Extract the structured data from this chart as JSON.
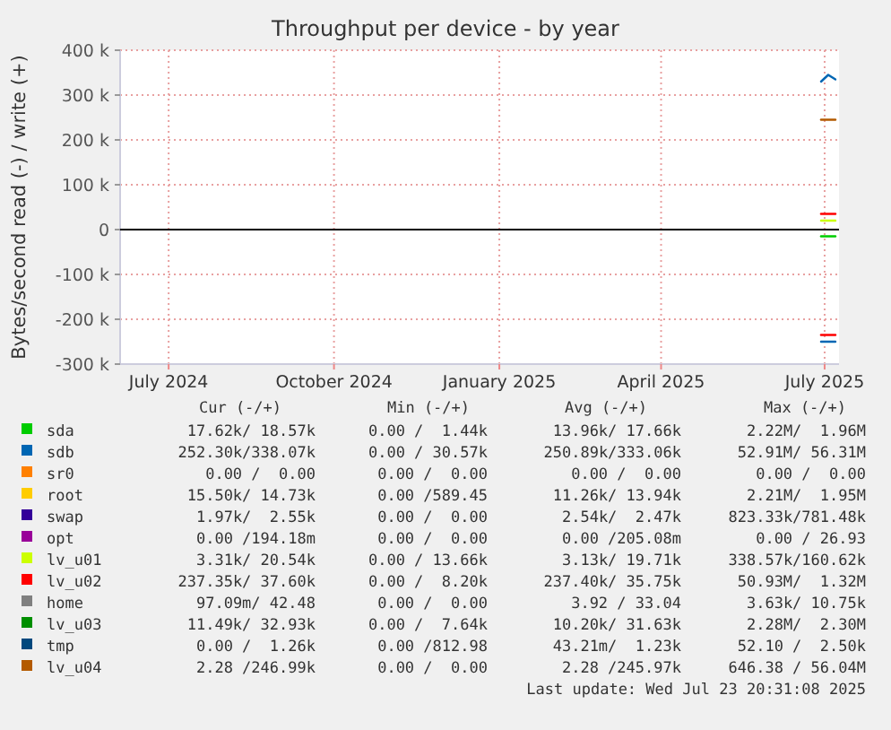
{
  "chart_data": {
    "type": "line",
    "title": "Throughput per device - by year",
    "ylabel": "Bytes/second read (-) / write (+)",
    "x": [
      "2025-06-29",
      "2025-07-03",
      "2025-07-07"
    ],
    "xlim": [
      "2024-06-04",
      "2025-07-09"
    ],
    "xticks": [
      {
        "value": "2024-07-01",
        "label": "July 2024"
      },
      {
        "value": "2024-10-01",
        "label": "October 2024"
      },
      {
        "value": "2025-01-01",
        "label": "January 2025"
      },
      {
        "value": "2025-04-01",
        "label": "April 2025"
      },
      {
        "value": "2025-07-01",
        "label": "July 2025"
      }
    ],
    "ylim": [
      -300000,
      400000
    ],
    "yticks": [
      {
        "value": -300000,
        "label": "-300 k"
      },
      {
        "value": -200000,
        "label": "-200 k"
      },
      {
        "value": -100000,
        "label": "-100 k"
      },
      0,
      {
        "value": 100000,
        "label": "100 k"
      },
      {
        "value": 200000,
        "label": "200 k"
      },
      {
        "value": 300000,
        "label": "300 k"
      },
      {
        "value": 400000,
        "label": "400 k"
      }
    ],
    "grid": true,
    "legend": "bottom",
    "line_style": "solid",
    "marker": "none",
    "series": [
      {
        "name": "sda",
        "color": "#00cc00",
        "values": [
          null,
          null,
          null
        ]
      },
      {
        "color": "#00cd00",
        "values": [
          -15000,
          -15000,
          -15000
        ]
      },
      {
        "name": "sdb",
        "color": "#0066b3",
        "values": [
          330000,
          345000,
          335000
        ]
      },
      {
        "color": "#0067b4",
        "values": [
          -250000,
          -250000,
          -250000
        ]
      },
      {
        "name": "sr0",
        "color": "#ff8000",
        "values": [
          null,
          null,
          null
        ]
      },
      {
        "name": "root",
        "color": "#ffcc00",
        "values": [
          null,
          null,
          null
        ]
      },
      {
        "name": "swap",
        "color": "#330099",
        "values": [
          null,
          null,
          null
        ]
      },
      {
        "name": "opt",
        "color": "#990099",
        "values": [
          null,
          null,
          null
        ]
      },
      {
        "name": "lv_u01",
        "color": "#ccff00",
        "values": [
          20000,
          20000,
          20000
        ]
      },
      {
        "name": "lv_u02",
        "color": "#ff0000",
        "values": [
          35000,
          35000,
          35000
        ]
      },
      {
        "color": "#fe0101",
        "values": [
          -235000,
          -235000,
          -235000
        ]
      },
      {
        "name": "home",
        "color": "#808080",
        "values": [
          null,
          null,
          null
        ]
      },
      {
        "name": "lv_u03",
        "color": "#008f00",
        "values": [
          null,
          null,
          null
        ]
      },
      {
        "name": "tmp",
        "color": "#00487d",
        "values": [
          null,
          null,
          null
        ]
      },
      {
        "name": "lv_u04",
        "color": "#b35a00",
        "values": [
          245000,
          245000,
          245000
        ]
      }
    ],
    "annotations": [
      "Cur (-/+)",
      "Min (-/+)",
      "Avg (-/+)",
      "Max (-/+)",
      "17.62k/ 18.57k",
      "0.00 /  1.44k",
      "13.96k/ 17.66k",
      "2.22M/  1.96M",
      "252.30k/338.07k",
      "0.00 / 30.57k",
      "250.89k/333.06k",
      "52.91M/ 56.31M",
      "0.00 /  0.00",
      "0.00 /  0.00",
      "0.00 /  0.00",
      "0.00 /  0.00",
      "15.50k/ 14.73k",
      "0.00 /589.45",
      "11.26k/ 13.94k",
      "2.21M/  1.95M",
      "1.97k/  2.55k",
      "0.00 /  0.00",
      "2.54k/  2.47k",
      "823.33k/781.48k",
      "0.00 /194.18m",
      "0.00 /  0.00",
      "0.00 /205.08m",
      "0.00 / 26.93",
      "3.31k/ 20.54k",
      "0.00 / 13.66k",
      "3.13k/ 19.71k",
      "338.57k/160.62k",
      "237.35k/ 37.60k",
      "0.00 /  8.20k",
      "237.40k/ 35.75k",
      "50.93M/  1.32M",
      "97.09m/ 42.48",
      "0.00 /  0.00",
      "3.92 / 33.04",
      "3.63k/ 10.75k",
      "11.49k/ 32.93k",
      "0.00 /  7.64k",
      "10.20k/ 31.63k",
      "2.28M/  2.30M",
      "0.00 /  1.26k",
      "0.00 /812.98",
      "43.21m/  1.23k",
      "52.10 /  2.50k",
      "2.28 /246.99k",
      "0.00 /  0.00",
      "2.28 /245.97k",
      "646.38 / 56.04M",
      "Last update: Wed Jul 23 20:31:08 2025"
    ]
  }
}
